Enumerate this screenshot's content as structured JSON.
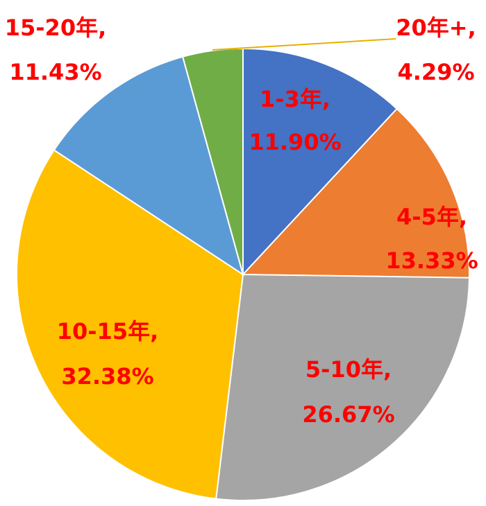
{
  "chart_data": {
    "type": "pie",
    "categories": [
      "1-3年,",
      "4-5年,",
      "5-10年,",
      "10-15年,",
      "15-20年,",
      "20年+,"
    ],
    "values": [
      11.9,
      13.33,
      26.67,
      32.38,
      11.43,
      4.29
    ],
    "value_labels": [
      "11.90%",
      "13.33%",
      "26.67%",
      "32.38%",
      "11.43%",
      "4.29%"
    ],
    "colors": [
      "#4472c4",
      "#ed7d31",
      "#a5a5a5",
      "#ffc000",
      "#5b9bd5",
      "#70ad47"
    ],
    "label_color": "#ff0000"
  }
}
